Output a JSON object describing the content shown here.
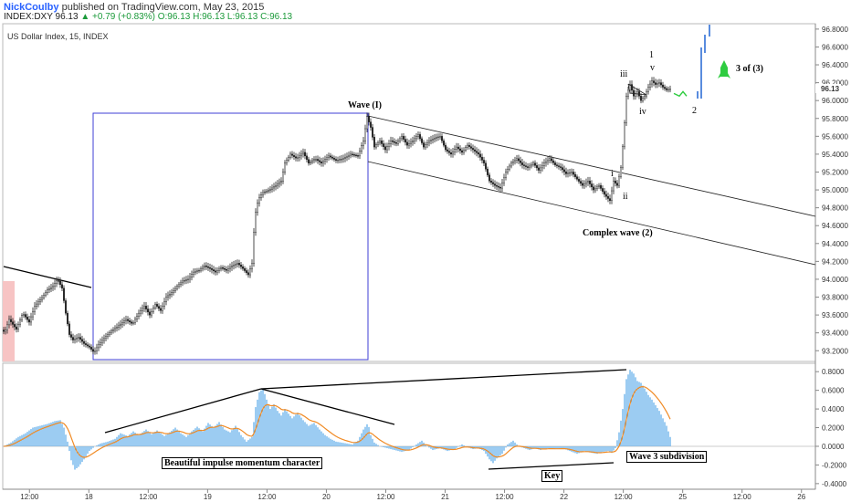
{
  "header": {
    "author": "NickCoulby",
    "published": "published on TradingView.com, May 23, 2015",
    "symbol": "INDEX:DXY",
    "last": "96.13",
    "change": "+0.79 (+0.83%)",
    "o": "O:96.13",
    "h": "H:96.13",
    "l": "L:96.13",
    "c": "C:96.13"
  },
  "chart_data": [
    {
      "type": "candlestick",
      "title": "US Dollar Index, 15, INDEX",
      "x_ticks": [
        "12:00",
        "18",
        "12:00",
        "19",
        "12:00",
        "20",
        "12:00",
        "21",
        "12:00",
        "22",
        "12:00",
        "25",
        "12:00",
        "26"
      ],
      "y_ticks": [
        93.2,
        93.4,
        93.6,
        93.8,
        94.0,
        94.2,
        94.4,
        94.6,
        94.8,
        95.0,
        95.2,
        95.4,
        95.6,
        95.8,
        96.0,
        96.2,
        96.4,
        96.6,
        96.8
      ],
      "ylim": [
        93.08,
        96.86
      ],
      "last_price": "96.13",
      "price_path": [
        [
          0,
          93.48
        ],
        [
          5,
          93.4
        ],
        [
          10,
          93.55
        ],
        [
          18,
          93.44
        ],
        [
          25,
          93.62
        ],
        [
          32,
          93.52
        ],
        [
          38,
          93.7
        ],
        [
          45,
          93.78
        ],
        [
          52,
          93.88
        ],
        [
          58,
          93.92
        ],
        [
          63,
          94.0
        ],
        [
          68,
          93.9
        ],
        [
          72,
          93.62
        ],
        [
          76,
          93.38
        ],
        [
          80,
          93.32
        ],
        [
          86,
          93.35
        ],
        [
          92,
          93.28
        ],
        [
          98,
          93.24
        ],
        [
          103,
          93.18
        ],
        [
          108,
          93.27
        ],
        [
          115,
          93.35
        ],
        [
          122,
          93.42
        ],
        [
          130,
          93.48
        ],
        [
          138,
          93.55
        ],
        [
          145,
          93.5
        ],
        [
          152,
          93.62
        ],
        [
          158,
          93.7
        ],
        [
          164,
          93.6
        ],
        [
          170,
          93.72
        ],
        [
          176,
          93.65
        ],
        [
          182,
          93.8
        ],
        [
          188,
          93.85
        ],
        [
          194,
          93.92
        ],
        [
          200,
          93.98
        ],
        [
          206,
          94.0
        ],
        [
          212,
          94.08
        ],
        [
          218,
          94.1
        ],
        [
          224,
          94.15
        ],
        [
          230,
          94.12
        ],
        [
          236,
          94.08
        ],
        [
          242,
          94.13
        ],
        [
          248,
          94.1
        ],
        [
          254,
          94.15
        ],
        [
          260,
          94.18
        ],
        [
          266,
          94.12
        ],
        [
          272,
          94.05
        ],
        [
          276,
          94.18
        ],
        [
          279,
          94.7
        ],
        [
          283,
          94.9
        ],
        [
          288,
          94.97
        ],
        [
          295,
          95.0
        ],
        [
          302,
          95.05
        ],
        [
          308,
          95.1
        ],
        [
          312,
          95.3
        ],
        [
          318,
          95.4
        ],
        [
          325,
          95.35
        ],
        [
          332,
          95.42
        ],
        [
          338,
          95.3
        ],
        [
          345,
          95.35
        ],
        [
          352,
          95.3
        ],
        [
          360,
          95.38
        ],
        [
          368,
          95.33
        ],
        [
          376,
          95.35
        ],
        [
          384,
          95.4
        ],
        [
          392,
          95.38
        ],
        [
          398,
          95.55
        ],
        [
          402,
          95.82
        ],
        [
          406,
          95.7
        ],
        [
          410,
          95.48
        ],
        [
          416,
          95.55
        ],
        [
          422,
          95.45
        ],
        [
          428,
          95.55
        ],
        [
          434,
          95.52
        ],
        [
          440,
          95.6
        ],
        [
          446,
          95.5
        ],
        [
          452,
          95.55
        ],
        [
          458,
          95.62
        ],
        [
          464,
          95.48
        ],
        [
          470,
          95.55
        ],
        [
          476,
          95.58
        ],
        [
          482,
          95.6
        ],
        [
          488,
          95.45
        ],
        [
          494,
          95.4
        ],
        [
          500,
          95.48
        ],
        [
          506,
          95.42
        ],
        [
          512,
          95.5
        ],
        [
          518,
          95.45
        ],
        [
          524,
          95.4
        ],
        [
          530,
          95.3
        ],
        [
          536,
          95.1
        ],
        [
          542,
          95.05
        ],
        [
          548,
          95.02
        ],
        [
          554,
          95.2
        ],
        [
          560,
          95.3
        ],
        [
          566,
          95.35
        ],
        [
          572,
          95.28
        ],
        [
          578,
          95.25
        ],
        [
          584,
          95.3
        ],
        [
          590,
          95.22
        ],
        [
          596,
          95.3
        ],
        [
          602,
          95.35
        ],
        [
          608,
          95.28
        ],
        [
          614,
          95.25
        ],
        [
          620,
          95.18
        ],
        [
          626,
          95.2
        ],
        [
          632,
          95.12
        ],
        [
          638,
          95.05
        ],
        [
          644,
          95.1
        ],
        [
          650,
          95.0
        ],
        [
          656,
          95.05
        ],
        [
          662,
          94.95
        ],
        [
          668,
          94.88
        ],
        [
          672,
          95.1
        ],
        [
          676,
          95.05
        ],
        [
          680,
          95.25
        ],
        [
          683,
          95.6
        ],
        [
          686,
          96.05
        ],
        [
          690,
          96.18
        ],
        [
          694,
          96.05
        ],
        [
          698,
          96.1
        ],
        [
          702,
          96.0
        ],
        [
          706,
          96.05
        ],
        [
          710,
          96.15
        ],
        [
          714,
          96.22
        ],
        [
          718,
          96.18
        ],
        [
          722,
          96.2
        ],
        [
          726,
          96.15
        ],
        [
          730,
          96.12
        ],
        [
          734,
          96.13
        ]
      ],
      "projection_path": [
        [
          738,
          96.08
        ],
        [
          744,
          96.05
        ],
        [
          748,
          96.1
        ],
        [
          752,
          96.05
        ]
      ]
    },
    {
      "type": "histogram",
      "name": "momentum",
      "y_ticks": [
        -0.4,
        -0.2,
        0.0,
        0.2,
        0.4,
        0.6,
        0.8
      ],
      "ylim": [
        -0.46,
        0.89
      ],
      "hist_path": [
        [
          4,
          0.0
        ],
        [
          12,
          0.04
        ],
        [
          20,
          0.1
        ],
        [
          28,
          0.14
        ],
        [
          36,
          0.2
        ],
        [
          44,
          0.22
        ],
        [
          52,
          0.24
        ],
        [
          60,
          0.27
        ],
        [
          66,
          0.28
        ],
        [
          70,
          0.2
        ],
        [
          74,
          0.05
        ],
        [
          78,
          -0.15
        ],
        [
          82,
          -0.25
        ],
        [
          86,
          -0.22
        ],
        [
          92,
          -0.14
        ],
        [
          98,
          -0.05
        ],
        [
          104,
          0.0
        ],
        [
          110,
          0.03
        ],
        [
          118,
          0.05
        ],
        [
          126,
          0.08
        ],
        [
          132,
          0.14
        ],
        [
          140,
          0.11
        ],
        [
          146,
          0.16
        ],
        [
          152,
          0.12
        ],
        [
          160,
          0.18
        ],
        [
          166,
          0.13
        ],
        [
          172,
          0.17
        ],
        [
          180,
          0.11
        ],
        [
          186,
          0.15
        ],
        [
          192,
          0.2
        ],
        [
          198,
          0.14
        ],
        [
          204,
          0.1
        ],
        [
          210,
          0.16
        ],
        [
          216,
          0.21
        ],
        [
          222,
          0.16
        ],
        [
          228,
          0.25
        ],
        [
          234,
          0.2
        ],
        [
          240,
          0.26
        ],
        [
          246,
          0.18
        ],
        [
          252,
          0.15
        ],
        [
          258,
          0.22
        ],
        [
          264,
          0.12
        ],
        [
          270,
          0.05
        ],
        [
          276,
          0.1
        ],
        [
          280,
          0.42
        ],
        [
          284,
          0.58
        ],
        [
          288,
          0.62
        ],
        [
          292,
          0.5
        ],
        [
          296,
          0.4
        ],
        [
          300,
          0.45
        ],
        [
          304,
          0.38
        ],
        [
          308,
          0.33
        ],
        [
          312,
          0.4
        ],
        [
          316,
          0.35
        ],
        [
          320,
          0.3
        ],
        [
          326,
          0.36
        ],
        [
          332,
          0.28
        ],
        [
          338,
          0.22
        ],
        [
          344,
          0.25
        ],
        [
          350,
          0.18
        ],
        [
          356,
          0.12
        ],
        [
          362,
          0.08
        ],
        [
          368,
          0.05
        ],
        [
          374,
          0.04
        ],
        [
          380,
          0.03
        ],
        [
          386,
          0.02
        ],
        [
          392,
          0.06
        ],
        [
          398,
          0.18
        ],
        [
          403,
          0.25
        ],
        [
          406,
          0.12
        ],
        [
          410,
          0.04
        ],
        [
          416,
          0.0
        ],
        [
          424,
          -0.02
        ],
        [
          432,
          -0.04
        ],
        [
          440,
          -0.06
        ],
        [
          448,
          -0.04
        ],
        [
          456,
          0.02
        ],
        [
          462,
          0.06
        ],
        [
          468,
          0.0
        ],
        [
          474,
          -0.04
        ],
        [
          482,
          -0.02
        ],
        [
          490,
          -0.05
        ],
        [
          498,
          -0.03
        ],
        [
          506,
          0.02
        ],
        [
          512,
          -0.01
        ],
        [
          518,
          -0.03
        ],
        [
          524,
          -0.02
        ],
        [
          530,
          -0.05
        ],
        [
          536,
          -0.14
        ],
        [
          540,
          -0.18
        ],
        [
          544,
          -0.13
        ],
        [
          550,
          -0.08
        ],
        [
          556,
          0.02
        ],
        [
          562,
          0.06
        ],
        [
          568,
          0.0
        ],
        [
          574,
          -0.02
        ],
        [
          580,
          -0.04
        ],
        [
          586,
          -0.02
        ],
        [
          592,
          -0.04
        ],
        [
          600,
          -0.02
        ],
        [
          608,
          -0.03
        ],
        [
          616,
          -0.02
        ],
        [
          624,
          -0.05
        ],
        [
          632,
          -0.08
        ],
        [
          640,
          -0.05
        ],
        [
          648,
          -0.07
        ],
        [
          654,
          -0.08
        ],
        [
          660,
          -0.06
        ],
        [
          666,
          -0.05
        ],
        [
          670,
          -0.07
        ],
        [
          674,
          -0.02
        ],
        [
          678,
          0.15
        ],
        [
          682,
          0.4
        ],
        [
          686,
          0.72
        ],
        [
          690,
          0.82
        ],
        [
          694,
          0.78
        ],
        [
          698,
          0.7
        ],
        [
          702,
          0.68
        ],
        [
          706,
          0.62
        ],
        [
          710,
          0.55
        ],
        [
          714,
          0.5
        ],
        [
          718,
          0.44
        ],
        [
          722,
          0.38
        ],
        [
          726,
          0.3
        ],
        [
          730,
          0.22
        ],
        [
          734,
          0.1
        ]
      ]
    }
  ],
  "annotations": {
    "wave1": "Wave (I)",
    "complex": "Complex wave (2)",
    "wave3of3": "3 of (3)",
    "lbl_1": "1",
    "lbl_v": "v",
    "lbl_iii": "iii",
    "lbl_iv": "iv",
    "lbl_2": "2",
    "lbl_i": "i",
    "lbl_ii": "ii",
    "impulse": "Beautiful impulse momentum character",
    "key": "Key",
    "wave3sub": "Wave 3 subdivision"
  },
  "colors": {
    "up": "#1b9a3a",
    "box": "#3f3fd6",
    "hist": "#5aaae8",
    "signal": "#f08a24",
    "projection_up": "#2f6fd6",
    "projection_curve": "#2ecc40",
    "rocket": "#2ecc40",
    "highlight": "#f7c4c4"
  }
}
